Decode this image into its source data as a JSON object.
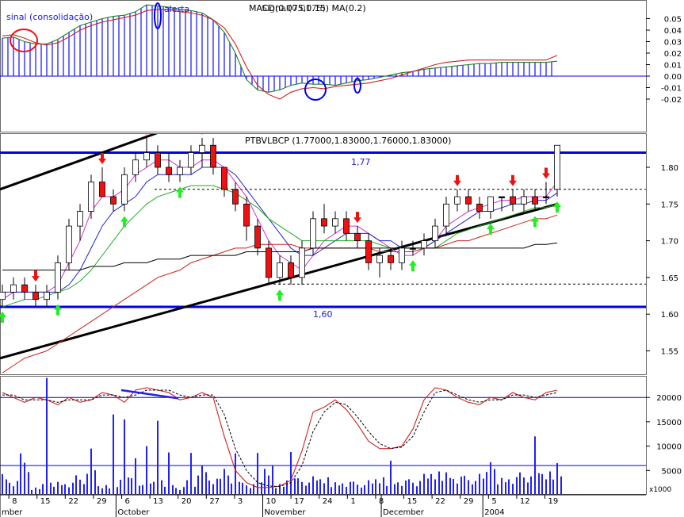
{
  "colors": {
    "background": "#ffffff",
    "panel_border": "#6a6a6a",
    "macd_bars": "#2020ff",
    "macd_line": "#208020",
    "signal_line": "#d02020",
    "trend_line": "#000000",
    "support_resistance": "#0000ee",
    "candle_up": "#ffffff",
    "candle_down": "#ee1111",
    "candle_doji": "#000000",
    "sell_arrow": "#ee1111",
    "buy_arrow": "#22ee22",
    "ma_short": "#cc33cc",
    "ma_mid": "#2222cc",
    "ma_green": "#22aa22",
    "ma_red": "#cc2222",
    "ma_long": "#000000",
    "stoch_k": "#cc2222",
    "stoch_d": "#000000",
    "volume_bars": "#2020ff"
  },
  "chart_data": [
    {
      "type": "line",
      "panel": "macd",
      "title": "MACD(0.075,0.15) MA(0.2)",
      "title_overlap": "Signal(0.0175)",
      "annotations": [
        "sinal (consolidação)",
        "alerta"
      ],
      "ylim": [
        -0.025,
        0.06
      ],
      "yticks": [
        "0.05",
        "0.04",
        "0.03",
        "0.02",
        "0.01",
        "0.00",
        "-0.01",
        "-0.02"
      ],
      "ytick_values": [
        0.05,
        0.04,
        0.03,
        0.02,
        0.01,
        0.0,
        -0.01,
        -0.02
      ],
      "series": [
        {
          "kind": "macd",
          "values": [
            0.033,
            0.034,
            0.03,
            0.028,
            0.028,
            0.032,
            0.038,
            0.044,
            0.047,
            0.05,
            0.052,
            0.053,
            0.056,
            0.062,
            0.061,
            0.06,
            0.058,
            0.057,
            0.055,
            0.049,
            0.038,
            0.02,
            -0.003,
            -0.012,
            -0.014,
            -0.012,
            -0.008,
            -0.006,
            -0.007,
            -0.007,
            -0.008,
            -0.006,
            -0.004,
            -0.003,
            -0.001,
            0.001,
            0.003,
            0.004,
            0.006,
            0.007,
            0.008,
            0.009,
            0.01,
            0.011,
            0.011,
            0.012,
            0.012,
            0.012,
            0.012,
            0.012,
            0.013
          ]
        },
        {
          "kind": "signal",
          "values": [
            0.035,
            0.036,
            0.033,
            0.029,
            0.027,
            0.029,
            0.034,
            0.04,
            0.044,
            0.047,
            0.049,
            0.051,
            0.053,
            0.057,
            0.058,
            0.058,
            0.056,
            0.055,
            0.053,
            0.049,
            0.042,
            0.028,
            0.008,
            -0.008,
            -0.016,
            -0.02,
            -0.014,
            -0.011,
            -0.01,
            -0.011,
            -0.009,
            -0.008,
            -0.007,
            -0.006,
            -0.004,
            -0.002,
            0.001,
            0.004,
            0.007,
            0.01,
            0.012,
            0.013,
            0.014,
            0.014,
            0.014,
            0.014,
            0.014,
            0.014,
            0.014,
            0.014,
            0.018
          ]
        }
      ]
    },
    {
      "type": "candlestick",
      "panel": "price",
      "title": "PTBVLBCP (1.77000,1.83000,1.76000,1.83000)",
      "annotations": [
        "1,77",
        "1,60"
      ],
      "ylim": [
        1.485,
        1.885
      ],
      "yticks": [
        "1.80",
        "1.75",
        "1.70",
        "1.65",
        "1.60",
        "1.55"
      ],
      "ytick_values": [
        1.8,
        1.75,
        1.7,
        1.65,
        1.6,
        1.55
      ],
      "horizontal_lines": [
        1.82,
        1.61
      ],
      "dashed_lines": [
        1.77,
        1.641
      ],
      "ohlc": [
        [
          1.62,
          1.64,
          1.61,
          1.63
        ],
        [
          1.63,
          1.65,
          1.62,
          1.64
        ],
        [
          1.64,
          1.65,
          1.62,
          1.63
        ],
        [
          1.63,
          1.64,
          1.61,
          1.62
        ],
        [
          1.62,
          1.64,
          1.61,
          1.63
        ],
        [
          1.63,
          1.68,
          1.62,
          1.67
        ],
        [
          1.67,
          1.73,
          1.66,
          1.72
        ],
        [
          1.72,
          1.75,
          1.7,
          1.74
        ],
        [
          1.74,
          1.79,
          1.73,
          1.78
        ],
        [
          1.78,
          1.8,
          1.76,
          1.76
        ],
        [
          1.76,
          1.77,
          1.74,
          1.75
        ],
        [
          1.75,
          1.8,
          1.74,
          1.79
        ],
        [
          1.79,
          1.82,
          1.78,
          1.81
        ],
        [
          1.81,
          1.84,
          1.8,
          1.82
        ],
        [
          1.82,
          1.83,
          1.79,
          1.8
        ],
        [
          1.8,
          1.82,
          1.78,
          1.79
        ],
        [
          1.79,
          1.81,
          1.78,
          1.8
        ],
        [
          1.8,
          1.83,
          1.79,
          1.82
        ],
        [
          1.82,
          1.84,
          1.8,
          1.83
        ],
        [
          1.83,
          1.84,
          1.79,
          1.8
        ],
        [
          1.8,
          1.8,
          1.76,
          1.77
        ],
        [
          1.77,
          1.78,
          1.74,
          1.75
        ],
        [
          1.75,
          1.76,
          1.7,
          1.72
        ],
        [
          1.72,
          1.73,
          1.68,
          1.69
        ],
        [
          1.69,
          1.7,
          1.64,
          1.65
        ],
        [
          1.65,
          1.68,
          1.64,
          1.67
        ],
        [
          1.67,
          1.68,
          1.64,
          1.65
        ],
        [
          1.65,
          1.7,
          1.64,
          1.69
        ],
        [
          1.69,
          1.74,
          1.68,
          1.73
        ],
        [
          1.73,
          1.75,
          1.71,
          1.72
        ],
        [
          1.72,
          1.74,
          1.71,
          1.73
        ],
        [
          1.73,
          1.74,
          1.7,
          1.71
        ],
        [
          1.71,
          1.72,
          1.69,
          1.7
        ],
        [
          1.7,
          1.71,
          1.66,
          1.67
        ],
        [
          1.67,
          1.69,
          1.65,
          1.68
        ],
        [
          1.68,
          1.69,
          1.66,
          1.67
        ],
        [
          1.67,
          1.7,
          1.66,
          1.69
        ],
        [
          1.69,
          1.7,
          1.68,
          1.69
        ],
        [
          1.69,
          1.71,
          1.68,
          1.7
        ],
        [
          1.7,
          1.73,
          1.69,
          1.72
        ],
        [
          1.72,
          1.76,
          1.71,
          1.75
        ],
        [
          1.75,
          1.77,
          1.74,
          1.76
        ],
        [
          1.76,
          1.77,
          1.74,
          1.75
        ],
        [
          1.75,
          1.76,
          1.73,
          1.74
        ],
        [
          1.74,
          1.76,
          1.73,
          1.76
        ],
        [
          1.76,
          1.76,
          1.74,
          1.76
        ],
        [
          1.76,
          1.77,
          1.74,
          1.75
        ],
        [
          1.75,
          1.77,
          1.74,
          1.76
        ],
        [
          1.76,
          1.77,
          1.74,
          1.75
        ],
        [
          1.76,
          1.78,
          1.75,
          1.76
        ],
        [
          1.77,
          1.83,
          1.76,
          1.83
        ]
      ],
      "ma_series": [
        {
          "kind": "short",
          "values": [
            1.62,
            1.63,
            1.63,
            1.63,
            1.63,
            1.64,
            1.67,
            1.7,
            1.74,
            1.76,
            1.76,
            1.77,
            1.79,
            1.8,
            1.81,
            1.81,
            1.8,
            1.8,
            1.81,
            1.81,
            1.8,
            1.78,
            1.76,
            1.73,
            1.7,
            1.68,
            1.67,
            1.66,
            1.68,
            1.7,
            1.71,
            1.72,
            1.72,
            1.71,
            1.7,
            1.69,
            1.68,
            1.68,
            1.69,
            1.7,
            1.72,
            1.73,
            1.74,
            1.745,
            1.75,
            1.755,
            1.755,
            1.76,
            1.76,
            1.76,
            1.78
          ]
        },
        {
          "kind": "mid",
          "values": [
            1.63,
            1.63,
            1.63,
            1.63,
            1.63,
            1.63,
            1.64,
            1.66,
            1.69,
            1.72,
            1.74,
            1.75,
            1.76,
            1.78,
            1.79,
            1.79,
            1.79,
            1.79,
            1.8,
            1.8,
            1.8,
            1.79,
            1.77,
            1.75,
            1.73,
            1.71,
            1.69,
            1.68,
            1.68,
            1.69,
            1.7,
            1.71,
            1.71,
            1.71,
            1.7,
            1.7,
            1.69,
            1.69,
            1.69,
            1.7,
            1.71,
            1.72,
            1.73,
            1.74,
            1.74,
            1.745,
            1.75,
            1.75,
            1.755,
            1.755,
            1.765
          ]
        },
        {
          "kind": "green",
          "values": [
            1.61,
            1.615,
            1.62,
            1.62,
            1.625,
            1.63,
            1.635,
            1.645,
            1.66,
            1.68,
            1.7,
            1.72,
            1.735,
            1.75,
            1.76,
            1.765,
            1.77,
            1.775,
            1.775,
            1.775,
            1.77,
            1.765,
            1.755,
            1.745,
            1.73,
            1.72,
            1.71,
            1.7,
            1.7,
            1.7,
            1.7,
            1.7,
            1.7,
            1.7,
            1.695,
            1.69,
            1.69,
            1.69,
            1.69,
            1.69,
            1.7,
            1.71,
            1.715,
            1.72,
            1.725,
            1.73,
            1.735,
            1.74,
            1.745,
            1.745,
            1.75
          ]
        },
        {
          "kind": "red",
          "values": [
            1.52,
            1.53,
            1.54,
            1.545,
            1.55,
            1.56,
            1.57,
            1.58,
            1.59,
            1.6,
            1.61,
            1.62,
            1.63,
            1.64,
            1.65,
            1.655,
            1.66,
            1.67,
            1.675,
            1.68,
            1.685,
            1.69,
            1.69,
            1.695,
            1.695,
            1.695,
            1.695,
            1.69,
            1.69,
            1.69,
            1.69,
            1.69,
            1.69,
            1.69,
            1.685,
            1.685,
            1.685,
            1.685,
            1.69,
            1.69,
            1.695,
            1.7,
            1.7,
            1.705,
            1.71,
            1.715,
            1.72,
            1.725,
            1.73,
            1.73,
            1.735
          ]
        },
        {
          "kind": "long",
          "values": [
            1.66,
            1.66,
            1.66,
            1.66,
            1.66,
            1.66,
            1.66,
            1.66,
            1.665,
            1.665,
            1.665,
            1.67,
            1.67,
            1.67,
            1.675,
            1.675,
            1.675,
            1.68,
            1.68,
            1.68,
            1.68,
            1.68,
            1.685,
            1.685,
            1.685,
            1.685,
            1.685,
            1.685,
            1.69,
            1.69,
            1.69,
            1.69,
            1.69,
            1.69,
            1.69,
            1.69,
            1.69,
            1.69,
            1.69,
            1.69,
            1.69,
            1.69,
            1.69,
            1.69,
            1.69,
            1.69,
            1.69,
            1.69,
            1.695,
            1.695,
            1.697
          ]
        }
      ],
      "trend_lines": [
        {
          "from": [
            0,
            1.77
          ],
          "to": [
            21,
            1.885
          ]
        },
        {
          "from": [
            0,
            1.54
          ],
          "to": [
            50,
            1.75
          ]
        }
      ],
      "sell_arrows": [
        3,
        9,
        13,
        18,
        32,
        41,
        46,
        49
      ],
      "buy_arrows": [
        0,
        5,
        11,
        16,
        25,
        37,
        44,
        48,
        50
      ]
    },
    {
      "type": "line",
      "panel": "stochastic",
      "ylim": [
        0,
        24000
      ],
      "yticks": [
        "20000",
        "15000",
        "10000",
        "5000"
      ],
      "ytick_values": [
        20000,
        15000,
        10000,
        5000
      ],
      "reference_lines": [
        20000,
        6000
      ],
      "unit_label": "x1000",
      "series": [
        {
          "kind": "k",
          "values": [
            21000,
            20000,
            19000,
            20000,
            19500,
            18500,
            20000,
            19000,
            19500,
            21000,
            20500,
            19000,
            21500,
            22000,
            21500,
            21000,
            19500,
            20000,
            21000,
            20000,
            12000,
            5000,
            2500,
            1500,
            1500,
            1800,
            3000,
            9000,
            17000,
            18000,
            19500,
            17500,
            14500,
            11000,
            9500,
            9500,
            10000,
            13500,
            19500,
            22000,
            21500,
            20000,
            19000,
            18500,
            20000,
            19500,
            21000,
            20000,
            19500,
            21000,
            21500
          ]
        },
        {
          "kind": "d",
          "values": [
            20500,
            20500,
            19500,
            19500,
            19500,
            19000,
            19500,
            19500,
            19500,
            20500,
            20500,
            20000,
            20500,
            21500,
            21500,
            21500,
            20500,
            20000,
            20500,
            20500,
            16500,
            9500,
            5000,
            2500,
            1800,
            1700,
            2500,
            6000,
            13000,
            17000,
            19000,
            18500,
            16000,
            13000,
            10500,
            9500,
            9800,
            12000,
            17000,
            21000,
            21500,
            20500,
            19500,
            19000,
            19500,
            19500,
            20500,
            20500,
            20000,
            20500,
            21000
          ]
        }
      ],
      "trend_line": {
        "from": [
          11,
          21500
        ],
        "to": [
          16,
          19800
        ]
      },
      "volume": [
        4800,
        3200,
        8500,
        1500,
        2500,
        3000,
        2800,
        4000,
        6500,
        2000,
        2400,
        4000,
        3400,
        3000,
        3000,
        3000,
        1800,
        3000,
        6000,
        3300,
        6000,
        3000,
        2500,
        3300,
        6000,
        2500,
        3800,
        3400,
        3800,
        3600,
        2900,
        3000,
        2700,
        3000,
        3600,
        3300,
        3300,
        3200,
        4300,
        4800,
        5200,
        4200,
        3900,
        4300,
        5300,
        3900,
        4100,
        4600,
        5700,
        4800,
        5700
      ],
      "volume_spikes": {
        "4": 24000,
        "8": 9500,
        "10": 16500,
        "11": 15500,
        "12": 7500,
        "13": 10000,
        "14": 15200,
        "15": 8700,
        "17": 8600,
        "21": 8500,
        "23": 8600,
        "26": 8800,
        "35": 7000,
        "44": 6700,
        "48": 12000,
        "50": 6500
      }
    }
  ],
  "x_axis": {
    "tick_labels": [
      "8",
      "15",
      "22",
      "29",
      "6",
      "13",
      "20",
      "27",
      "3",
      "10",
      "17",
      "24",
      "1",
      "8",
      "15",
      "22",
      "29",
      "5",
      "12",
      "19"
    ],
    "tick_days": [
      1,
      6,
      11,
      16,
      21,
      26,
      31,
      36,
      41,
      46,
      51,
      56,
      61,
      66,
      71,
      76,
      81,
      86,
      91,
      96
    ],
    "month_labels": [
      {
        "text": "mber",
        "day": -1
      },
      {
        "text": "October",
        "day": 20
      },
      {
        "text": "November",
        "day": 46
      },
      {
        "text": "December",
        "day": 67
      },
      {
        "text": "2004",
        "day": 85
      }
    ]
  }
}
